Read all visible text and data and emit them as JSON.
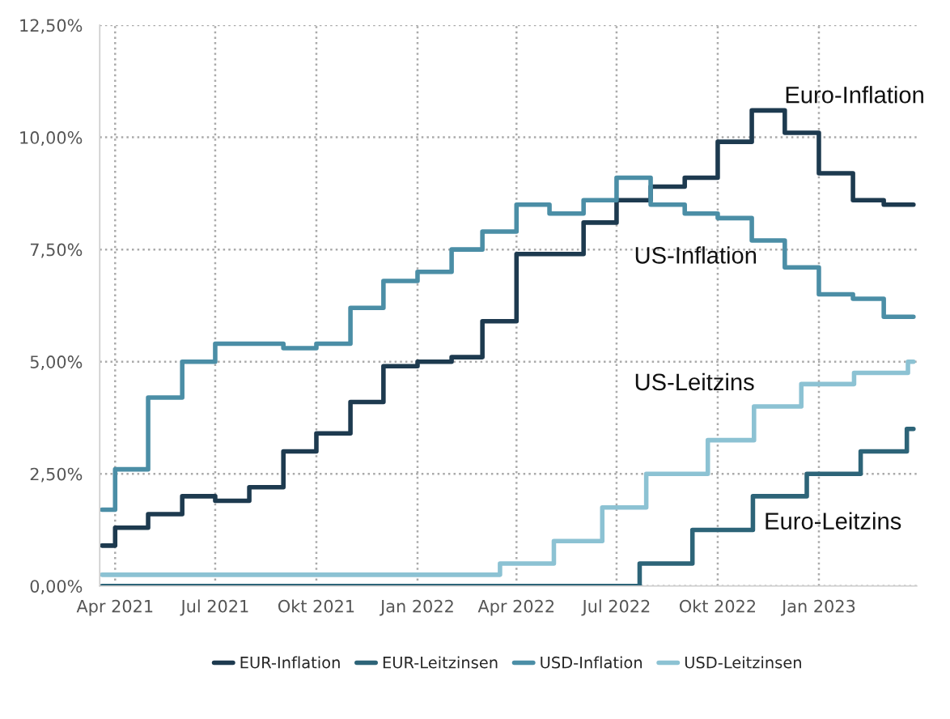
{
  "chart_data": {
    "type": "step",
    "xlim": [
      "2021-03-18",
      "2023-03-31"
    ],
    "ylim": [
      0,
      12.5
    ],
    "yticks": [
      {
        "value": 0,
        "label": "0,00%"
      },
      {
        "value": 2.5,
        "label": "2,50%"
      },
      {
        "value": 5,
        "label": "5,00%"
      },
      {
        "value": 7.5,
        "label": "7,50%"
      },
      {
        "value": 10,
        "label": "10,00%"
      },
      {
        "value": 12.5,
        "label": "12,50%"
      }
    ],
    "xticks": [
      {
        "value": "2021-04-01",
        "label": "Apr 2021"
      },
      {
        "value": "2021-07-01",
        "label": "Jul 2021"
      },
      {
        "value": "2021-10-01",
        "label": "Okt 2021"
      },
      {
        "value": "2022-01-01",
        "label": "Jan 2022"
      },
      {
        "value": "2022-04-01",
        "label": "Apr 2022"
      },
      {
        "value": "2022-07-01",
        "label": "Jul 2022"
      },
      {
        "value": "2022-10-01",
        "label": "Okt 2022"
      },
      {
        "value": "2023-01-01",
        "label": "Jan 2023"
      }
    ],
    "grid": true,
    "legend": "bottom",
    "line_style": "solid",
    "series": [
      {
        "name": "EUR-Inflation",
        "color": "#1d3a4f",
        "x": [
          "2021-03-20",
          "2021-04-01",
          "2021-05-01",
          "2021-06-01",
          "2021-07-01",
          "2021-08-01",
          "2021-09-01",
          "2021-10-01",
          "2021-11-01",
          "2021-12-01",
          "2022-01-01",
          "2022-02-01",
          "2022-03-01",
          "2022-04-01",
          "2022-05-01",
          "2022-06-01",
          "2022-07-01",
          "2022-08-01",
          "2022-09-01",
          "2022-10-01",
          "2022-11-01",
          "2022-12-01",
          "2023-01-01",
          "2023-02-01",
          "2023-03-01",
          "2023-03-28"
        ],
        "values": [
          0.9,
          1.3,
          1.6,
          2.0,
          1.9,
          2.2,
          3.0,
          3.4,
          4.1,
          4.9,
          5.0,
          5.1,
          5.9,
          7.4,
          7.4,
          8.1,
          8.6,
          8.9,
          9.1,
          9.9,
          10.6,
          10.1,
          9.2,
          8.6,
          8.5,
          8.5
        ]
      },
      {
        "name": "EUR-Leitzinsen",
        "color": "#2d6478",
        "x": [
          "2021-03-20",
          "2022-07-22",
          "2022-09-08",
          "2022-11-02",
          "2022-12-21",
          "2023-02-08",
          "2023-03-22",
          "2023-03-28"
        ],
        "values": [
          0.0,
          0.5,
          1.25,
          2.0,
          2.5,
          3.0,
          3.5,
          3.5
        ]
      },
      {
        "name": "USD-Inflation",
        "color": "#4b8ea6",
        "x": [
          "2021-03-20",
          "2021-04-01",
          "2021-05-01",
          "2021-06-01",
          "2021-07-01",
          "2021-08-01",
          "2021-09-01",
          "2021-10-01",
          "2021-11-01",
          "2021-12-01",
          "2022-01-01",
          "2022-02-01",
          "2022-03-01",
          "2022-04-01",
          "2022-05-01",
          "2022-06-01",
          "2022-07-01",
          "2022-08-01",
          "2022-09-01",
          "2022-10-01",
          "2022-11-01",
          "2022-12-01",
          "2023-01-01",
          "2023-02-01",
          "2023-03-01",
          "2023-03-28"
        ],
        "values": [
          1.7,
          2.6,
          4.2,
          5.0,
          5.4,
          5.4,
          5.3,
          5.4,
          6.2,
          6.8,
          7.0,
          7.5,
          7.9,
          8.5,
          8.3,
          8.6,
          9.1,
          8.5,
          8.3,
          8.2,
          7.7,
          7.1,
          6.5,
          6.4,
          6.0,
          6.0
        ]
      },
      {
        "name": "USD-Leitzinsen",
        "color": "#8cc2d3",
        "x": [
          "2021-03-20",
          "2022-03-17",
          "2022-05-05",
          "2022-06-18",
          "2022-07-28",
          "2022-09-22",
          "2022-11-03",
          "2022-12-16",
          "2023-02-02",
          "2023-03-23",
          "2023-03-28"
        ],
        "values": [
          0.25,
          0.5,
          1.0,
          1.75,
          2.5,
          3.25,
          4.0,
          4.5,
          4.75,
          5.0,
          5.0
        ]
      }
    ],
    "annotations": [
      "Euro-Inflation",
      "US-Inflation",
      "US-Leitzins",
      "Euro-Leitzins"
    ]
  }
}
